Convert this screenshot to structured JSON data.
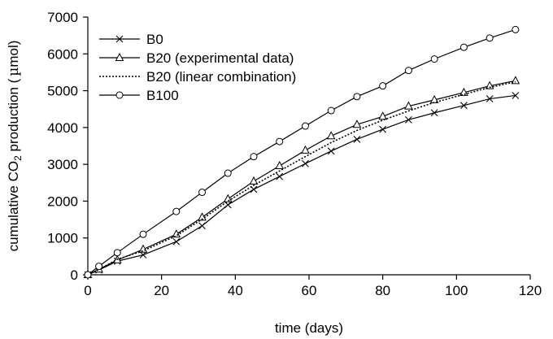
{
  "chart_data": {
    "type": "line",
    "title": "",
    "xlabel": "time (days)",
    "ylabel": {
      "prefix": "cumulative CO",
      "subscript": "2",
      "suffix": " production (",
      "mu": "µ",
      "unit": "mol)"
    },
    "xlim": [
      0,
      120
    ],
    "ylim": [
      0,
      7000
    ],
    "xticks": [
      0,
      20,
      40,
      60,
      80,
      100,
      120
    ],
    "yticks": [
      0,
      1000,
      2000,
      3000,
      4000,
      5000,
      6000,
      7000
    ],
    "grid": false,
    "legend_position": "top-left",
    "series": [
      {
        "name": "B0",
        "marker": "x",
        "line": "solid",
        "x": [
          0,
          3,
          8,
          15,
          24,
          31,
          38,
          45,
          52,
          59,
          66,
          73,
          80,
          87,
          94,
          102,
          109,
          116
        ],
        "y": [
          0,
          130,
          370,
          540,
          900,
          1330,
          1900,
          2320,
          2670,
          3020,
          3360,
          3680,
          3950,
          4210,
          4400,
          4600,
          4780,
          4870
        ]
      },
      {
        "name": "B20 (experimental data)",
        "marker": "triangle",
        "line": "solid",
        "x": [
          0,
          3,
          8,
          15,
          24,
          31,
          38,
          45,
          52,
          59,
          66,
          73,
          80,
          87,
          94,
          102,
          109,
          116
        ],
        "y": [
          0,
          150,
          400,
          690,
          1100,
          1560,
          2060,
          2540,
          2960,
          3380,
          3770,
          4080,
          4300,
          4580,
          4750,
          4950,
          5130,
          5270
        ]
      },
      {
        "name": "B20 (linear combination)",
        "marker": "none",
        "line": "dotted",
        "x": [
          0,
          3,
          8,
          15,
          24,
          31,
          38,
          45,
          52,
          59,
          66,
          73,
          80,
          87,
          94,
          102,
          109,
          116
        ],
        "y": [
          0,
          140,
          420,
          650,
          1060,
          1510,
          2000,
          2430,
          2820,
          3210,
          3590,
          3920,
          4200,
          4450,
          4680,
          4900,
          5090,
          5240
        ]
      },
      {
        "name": "B100",
        "marker": "circle",
        "line": "solid",
        "x": [
          0,
          3,
          8,
          15,
          24,
          31,
          38,
          45,
          52,
          59,
          66,
          73,
          80,
          87,
          94,
          102,
          109,
          116
        ],
        "y": [
          0,
          230,
          600,
          1100,
          1720,
          2240,
          2760,
          3210,
          3620,
          4040,
          4460,
          4840,
          5130,
          5550,
          5860,
          6180,
          6430,
          6660
        ]
      }
    ]
  }
}
